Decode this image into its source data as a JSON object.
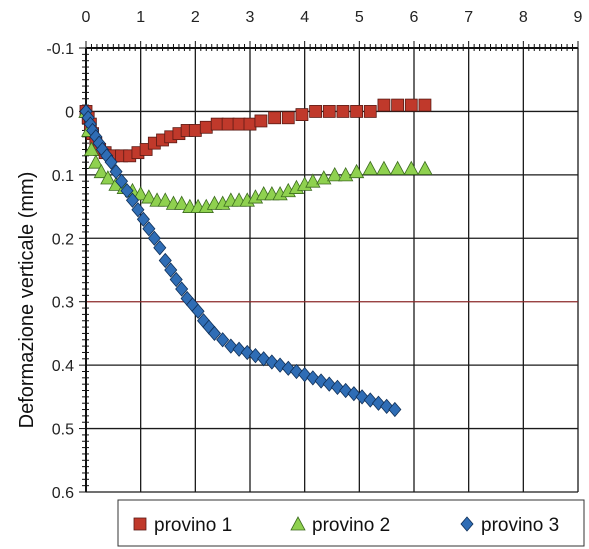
{
  "chart_data": {
    "type": "scatter",
    "title": "",
    "xlabel": "",
    "ylabel": "Deformazione verticale (mm)",
    "x_axis_position": "top",
    "y_axis_inverted": true,
    "xlim": [
      0,
      9
    ],
    "ylim": [
      -0.1,
      0.6
    ],
    "x_ticks": [
      "0",
      "1",
      "2",
      "3",
      "4",
      "5",
      "6",
      "7",
      "8",
      "9"
    ],
    "y_ticks": [
      "-0.1",
      "0",
      "0.1",
      "0.2",
      "0.3",
      "0.4",
      "0.5",
      "0.6"
    ],
    "grid": true,
    "legend_position": "bottom",
    "series": [
      {
        "name": "provino 1",
        "marker": "square",
        "color": "#c0392b",
        "x": [
          0,
          0.04,
          0.08,
          0.12,
          0.18,
          0.25,
          0.35,
          0.5,
          0.65,
          0.8,
          0.95,
          1.1,
          1.25,
          1.4,
          1.55,
          1.7,
          1.85,
          2.0,
          2.2,
          2.4,
          2.6,
          2.8,
          3.0,
          3.2,
          3.45,
          3.7,
          3.95,
          4.2,
          4.45,
          4.7,
          4.95,
          5.2,
          5.45,
          5.7,
          5.95,
          6.2
        ],
        "y": [
          0,
          0.01,
          0.02,
          0.035,
          0.05,
          0.06,
          0.065,
          0.07,
          0.07,
          0.07,
          0.065,
          0.06,
          0.05,
          0.045,
          0.04,
          0.035,
          0.03,
          0.03,
          0.025,
          0.02,
          0.02,
          0.02,
          0.02,
          0.015,
          0.01,
          0.01,
          0.005,
          0.0,
          0.0,
          0.0,
          0.0,
          0.0,
          -0.01,
          -0.01,
          -0.01,
          -0.01
        ]
      },
      {
        "name": "provino 2",
        "marker": "triangle",
        "color": "#8fd14f",
        "x": [
          0,
          0.05,
          0.1,
          0.18,
          0.28,
          0.4,
          0.55,
          0.7,
          0.85,
          1.0,
          1.15,
          1.3,
          1.45,
          1.6,
          1.75,
          1.9,
          2.05,
          2.2,
          2.35,
          2.5,
          2.65,
          2.8,
          2.95,
          3.1,
          3.25,
          3.4,
          3.55,
          3.7,
          3.85,
          4.0,
          4.15,
          4.35,
          4.55,
          4.75,
          4.95,
          5.2,
          5.45,
          5.7,
          5.95,
          6.2
        ],
        "y": [
          0,
          0.03,
          0.06,
          0.08,
          0.095,
          0.105,
          0.115,
          0.12,
          0.125,
          0.13,
          0.135,
          0.14,
          0.14,
          0.145,
          0.145,
          0.15,
          0.15,
          0.15,
          0.145,
          0.145,
          0.14,
          0.14,
          0.14,
          0.135,
          0.13,
          0.13,
          0.13,
          0.125,
          0.12,
          0.115,
          0.11,
          0.105,
          0.1,
          0.1,
          0.095,
          0.09,
          0.09,
          0.09,
          0.09,
          0.09
        ]
      },
      {
        "name": "provino 3",
        "marker": "diamond",
        "color": "#2f6db5",
        "x": [
          0,
          0.04,
          0.08,
          0.12,
          0.18,
          0.24,
          0.3,
          0.38,
          0.46,
          0.55,
          0.65,
          0.75,
          0.85,
          0.95,
          1.05,
          1.15,
          1.25,
          1.35,
          1.45,
          1.55,
          1.65,
          1.75,
          1.85,
          1.95,
          2.05,
          2.15,
          2.25,
          2.35,
          2.5,
          2.65,
          2.8,
          2.95,
          3.1,
          3.25,
          3.4,
          3.55,
          3.7,
          3.85,
          4.0,
          4.15,
          4.3,
          4.45,
          4.6,
          4.75,
          4.9,
          5.05,
          5.2,
          5.35,
          5.5,
          5.65
        ],
        "y": [
          0,
          0.01,
          0.02,
          0.03,
          0.04,
          0.05,
          0.06,
          0.07,
          0.08,
          0.095,
          0.11,
          0.125,
          0.14,
          0.155,
          0.17,
          0.185,
          0.2,
          0.215,
          0.235,
          0.25,
          0.265,
          0.28,
          0.295,
          0.305,
          0.315,
          0.33,
          0.34,
          0.35,
          0.36,
          0.37,
          0.375,
          0.38,
          0.385,
          0.39,
          0.395,
          0.4,
          0.405,
          0.41,
          0.415,
          0.42,
          0.425,
          0.43,
          0.435,
          0.44,
          0.445,
          0.45,
          0.455,
          0.46,
          0.465,
          0.47
        ]
      }
    ]
  }
}
